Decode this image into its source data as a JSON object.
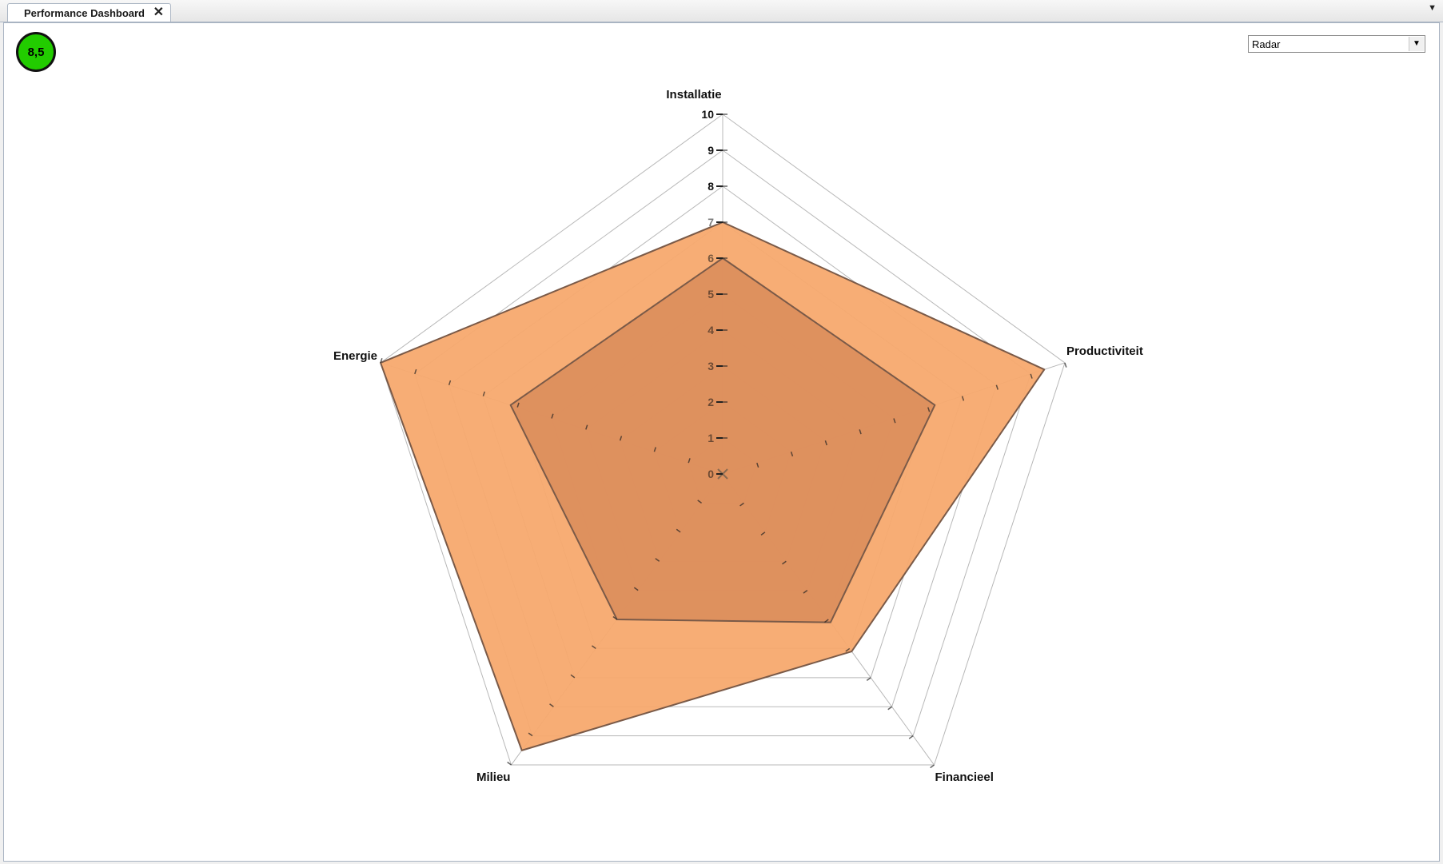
{
  "tab": {
    "title": "Performance Dashboard",
    "close_glyph": "✕",
    "menu_glyph": "▼"
  },
  "score": {
    "value": "8,5",
    "color": "#22cc00"
  },
  "chart_type_select": {
    "selected": "Radar"
  },
  "chart_data": {
    "type": "radar",
    "axes": [
      "Installatie",
      "Productiviteit",
      "Financieel",
      "Milieu",
      "Energie"
    ],
    "rlim": [
      0,
      10
    ],
    "ticks": [
      "0",
      "1",
      "2",
      "3",
      "4",
      "5",
      "6",
      "7",
      "8",
      "9",
      "10"
    ],
    "series": [
      {
        "values": [
          7,
          9.4,
          6.1,
          9.5,
          10
        ],
        "color": "#f7a96e"
      },
      {
        "values": [
          6,
          6.2,
          5.1,
          5.0,
          6.2
        ],
        "color": "#d98c5a"
      }
    ],
    "grid": true,
    "legend": "none"
  }
}
